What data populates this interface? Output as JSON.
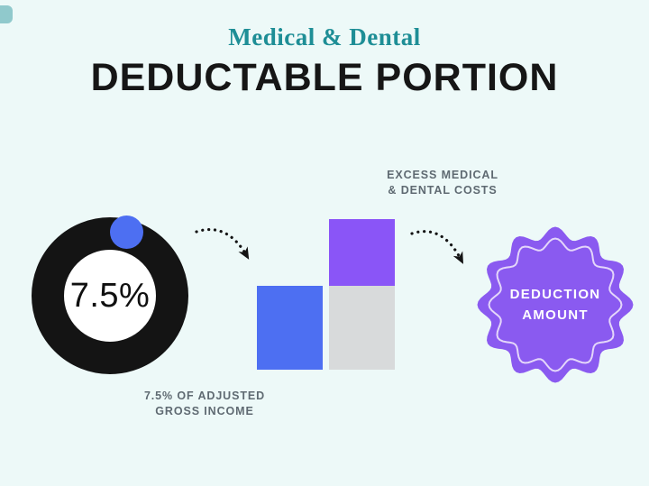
{
  "colors": {
    "bg": "#edf9f8",
    "eyebrow": "#1e8e96",
    "title": "#161616",
    "ink": "#141414",
    "caption": "#5f6a72",
    "blue": "#4d6ff2",
    "purple-bar": "#8a55f7",
    "gray-bar": "#d8dadb",
    "badge": "#8a5af0",
    "badge-ring": "#f3ecfb",
    "badge-text": "#ffffff"
  },
  "header": {
    "eyebrow": "Medical & Dental",
    "title": "DEDUCTABLE PORTION"
  },
  "donut": {
    "value": "7.5%",
    "caption_line1": "7.5% OF ADJUSTED",
    "caption_line2": "GROSS INCOME"
  },
  "bars": {
    "caption_line1": "EXCESS MEDICAL",
    "caption_line2": "& DENTAL COSTS"
  },
  "badge": {
    "line1": "DEDUCTION",
    "line2": "AMOUNT"
  }
}
